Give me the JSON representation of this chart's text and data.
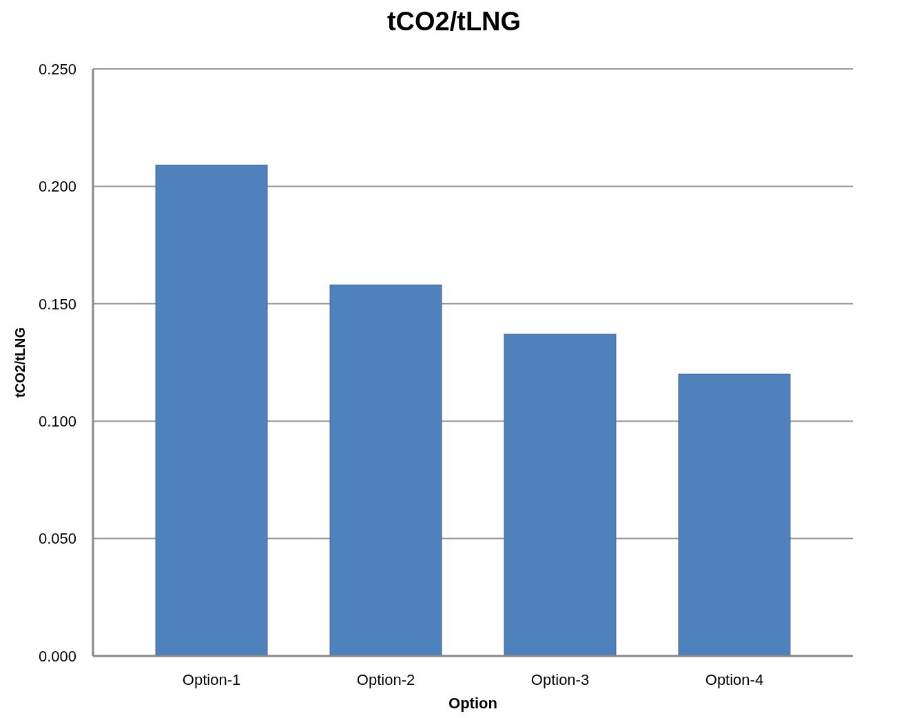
{
  "chart_data": {
    "type": "bar",
    "title": "tCO2/tLNG",
    "xlabel": "Option",
    "ylabel": "tCO2/tLNG",
    "categories": [
      "Option-1",
      "Option-2",
      "Option-3",
      "Option-4"
    ],
    "values": [
      0.209,
      0.158,
      0.137,
      0.12
    ],
    "color": "#4f81bd",
    "ylim": [
      0,
      0.25
    ],
    "yticks": [
      {
        "value": 0,
        "label": "0.000"
      },
      {
        "value": 0.05,
        "label": "0.050"
      },
      {
        "value": 0.1,
        "label": "0.100"
      },
      {
        "value": 0.15,
        "label": "0.150"
      },
      {
        "value": 0.2,
        "label": "0.200"
      },
      {
        "value": 0.25,
        "label": "0.250"
      }
    ],
    "grid": "y"
  }
}
